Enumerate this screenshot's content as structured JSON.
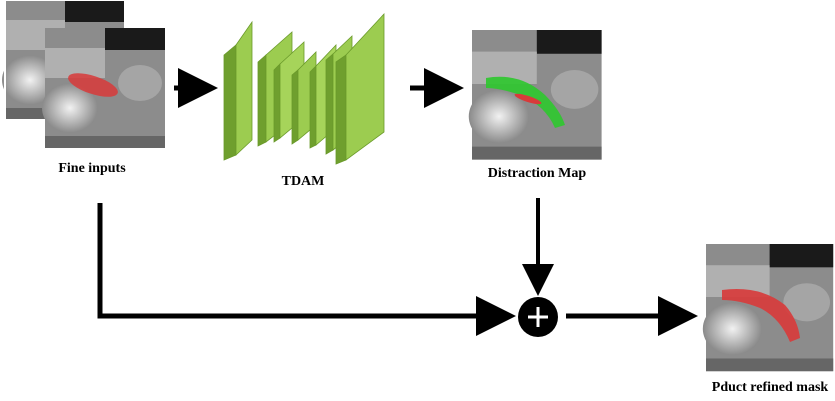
{
  "labels": {
    "fine_inputs": "Fine inputs",
    "tdam": "TDAM",
    "distraction_map": "Distraction Map",
    "refined_mask": "Pduct refined mask"
  }
}
